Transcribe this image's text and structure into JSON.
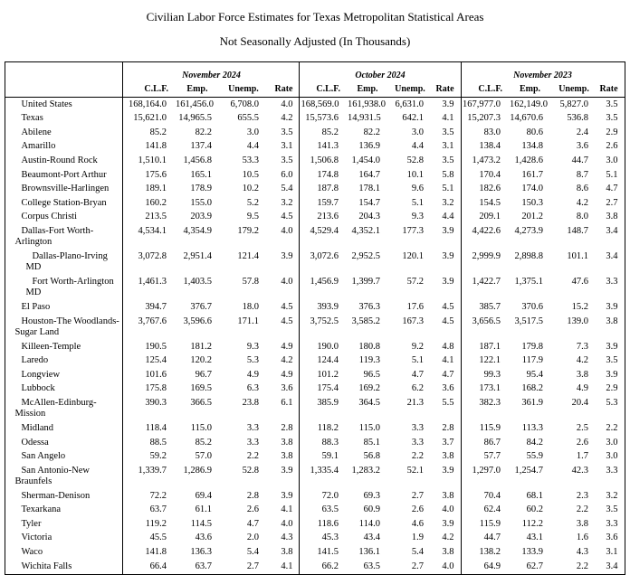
{
  "title": "Civilian Labor Force Estimates for Texas Metropolitan Statistical Areas",
  "subtitle": "Not Seasonally Adjusted (In Thousands)",
  "table": {
    "corner_label": "",
    "groups": [
      {
        "period": "November 2024",
        "columns": [
          "C.L.F.",
          "Emp.",
          "Unemp.",
          "Rate"
        ]
      },
      {
        "period": "October 2024",
        "columns": [
          "C.L.F.",
          "Emp.",
          "Unemp.",
          "Rate"
        ]
      },
      {
        "period": "November 2023",
        "columns": [
          "C.L.F.",
          "Emp.",
          "Unemp.",
          "Rate"
        ]
      }
    ],
    "rows": [
      {
        "area": "United States",
        "indent": 0,
        "values": [
          [
            "168,164.0",
            "161,456.0",
            "6,708.0",
            "4.0"
          ],
          [
            "168,569.0",
            "161,938.0",
            "6,631.0",
            "3.9"
          ],
          [
            "167,977.0",
            "162,149.0",
            "5,827.0",
            "3.5"
          ]
        ]
      },
      {
        "area": "Texas",
        "indent": 0,
        "values": [
          [
            "15,621.0",
            "14,965.5",
            "655.5",
            "4.2"
          ],
          [
            "15,573.6",
            "14,931.5",
            "642.1",
            "4.1"
          ],
          [
            "15,207.3",
            "14,670.6",
            "536.8",
            "3.5"
          ]
        ]
      },
      {
        "area": "Abilene",
        "indent": 0,
        "values": [
          [
            "85.2",
            "82.2",
            "3.0",
            "3.5"
          ],
          [
            "85.2",
            "82.2",
            "3.0",
            "3.5"
          ],
          [
            "83.0",
            "80.6",
            "2.4",
            "2.9"
          ]
        ]
      },
      {
        "area": "Amarillo",
        "indent": 0,
        "values": [
          [
            "141.8",
            "137.4",
            "4.4",
            "3.1"
          ],
          [
            "141.3",
            "136.9",
            "4.4",
            "3.1"
          ],
          [
            "138.4",
            "134.8",
            "3.6",
            "2.6"
          ]
        ]
      },
      {
        "area": "Austin-Round Rock",
        "indent": 0,
        "values": [
          [
            "1,510.1",
            "1,456.8",
            "53.3",
            "3.5"
          ],
          [
            "1,506.8",
            "1,454.0",
            "52.8",
            "3.5"
          ],
          [
            "1,473.2",
            "1,428.6",
            "44.7",
            "3.0"
          ]
        ]
      },
      {
        "area": "Beaumont-Port Arthur",
        "indent": 0,
        "values": [
          [
            "175.6",
            "165.1",
            "10.5",
            "6.0"
          ],
          [
            "174.8",
            "164.7",
            "10.1",
            "5.8"
          ],
          [
            "170.4",
            "161.7",
            "8.7",
            "5.1"
          ]
        ]
      },
      {
        "area": "Brownsville-Harlingen",
        "indent": 0,
        "values": [
          [
            "189.1",
            "178.9",
            "10.2",
            "5.4"
          ],
          [
            "187.8",
            "178.1",
            "9.6",
            "5.1"
          ],
          [
            "182.6",
            "174.0",
            "8.6",
            "4.7"
          ]
        ]
      },
      {
        "area": "College Station-Bryan",
        "indent": 0,
        "values": [
          [
            "160.2",
            "155.0",
            "5.2",
            "3.2"
          ],
          [
            "159.7",
            "154.7",
            "5.1",
            "3.2"
          ],
          [
            "154.5",
            "150.3",
            "4.2",
            "2.7"
          ]
        ]
      },
      {
        "area": "Corpus Christi",
        "indent": 0,
        "values": [
          [
            "213.5",
            "203.9",
            "9.5",
            "4.5"
          ],
          [
            "213.6",
            "204.3",
            "9.3",
            "4.4"
          ],
          [
            "209.1",
            "201.2",
            "8.0",
            "3.8"
          ]
        ]
      },
      {
        "area": "Dallas-Fort Worth-Arlington",
        "indent": 0,
        "values": [
          [
            "4,534.1",
            "4,354.9",
            "179.2",
            "4.0"
          ],
          [
            "4,529.4",
            "4,352.1",
            "177.3",
            "3.9"
          ],
          [
            "4,422.6",
            "4,273.9",
            "148.7",
            "3.4"
          ]
        ]
      },
      {
        "area": "Dallas-Plano-Irving MD",
        "indent": 1,
        "values": [
          [
            "3,072.8",
            "2,951.4",
            "121.4",
            "3.9"
          ],
          [
            "3,072.6",
            "2,952.5",
            "120.1",
            "3.9"
          ],
          [
            "2,999.9",
            "2,898.8",
            "101.1",
            "3.4"
          ]
        ]
      },
      {
        "area": "Fort Worth-Arlington MD",
        "indent": 1,
        "values": [
          [
            "1,461.3",
            "1,403.5",
            "57.8",
            "4.0"
          ],
          [
            "1,456.9",
            "1,399.7",
            "57.2",
            "3.9"
          ],
          [
            "1,422.7",
            "1,375.1",
            "47.6",
            "3.3"
          ]
        ]
      },
      {
        "area": "El Paso",
        "indent": 0,
        "values": [
          [
            "394.7",
            "376.7",
            "18.0",
            "4.5"
          ],
          [
            "393.9",
            "376.3",
            "17.6",
            "4.5"
          ],
          [
            "385.7",
            "370.6",
            "15.2",
            "3.9"
          ]
        ]
      },
      {
        "area": "Houston-The Woodlands-\nSugar Land",
        "indent": 0,
        "values": [
          [
            "3,767.6",
            "3,596.6",
            "171.1",
            "4.5"
          ],
          [
            "3,752.5",
            "3,585.2",
            "167.3",
            "4.5"
          ],
          [
            "3,656.5",
            "3,517.5",
            "139.0",
            "3.8"
          ]
        ]
      },
      {
        "area": "Killeen-Temple",
        "indent": 0,
        "values": [
          [
            "190.5",
            "181.2",
            "9.3",
            "4.9"
          ],
          [
            "190.0",
            "180.8",
            "9.2",
            "4.8"
          ],
          [
            "187.1",
            "179.8",
            "7.3",
            "3.9"
          ]
        ]
      },
      {
        "area": "Laredo",
        "indent": 0,
        "values": [
          [
            "125.4",
            "120.2",
            "5.3",
            "4.2"
          ],
          [
            "124.4",
            "119.3",
            "5.1",
            "4.1"
          ],
          [
            "122.1",
            "117.9",
            "4.2",
            "3.5"
          ]
        ]
      },
      {
        "area": "Longview",
        "indent": 0,
        "values": [
          [
            "101.6",
            "96.7",
            "4.9",
            "4.9"
          ],
          [
            "101.2",
            "96.5",
            "4.7",
            "4.7"
          ],
          [
            "99.3",
            "95.4",
            "3.8",
            "3.9"
          ]
        ]
      },
      {
        "area": "Lubbock",
        "indent": 0,
        "values": [
          [
            "175.8",
            "169.5",
            "6.3",
            "3.6"
          ],
          [
            "175.4",
            "169.2",
            "6.2",
            "3.6"
          ],
          [
            "173.1",
            "168.2",
            "4.9",
            "2.9"
          ]
        ]
      },
      {
        "area": "McAllen-Edinburg-Mission",
        "indent": 0,
        "values": [
          [
            "390.3",
            "366.5",
            "23.8",
            "6.1"
          ],
          [
            "385.9",
            "364.5",
            "21.3",
            "5.5"
          ],
          [
            "382.3",
            "361.9",
            "20.4",
            "5.3"
          ]
        ]
      },
      {
        "area": "Midland",
        "indent": 0,
        "values": [
          [
            "118.4",
            "115.0",
            "3.3",
            "2.8"
          ],
          [
            "118.2",
            "115.0",
            "3.3",
            "2.8"
          ],
          [
            "115.9",
            "113.3",
            "2.5",
            "2.2"
          ]
        ]
      },
      {
        "area": "Odessa",
        "indent": 0,
        "values": [
          [
            "88.5",
            "85.2",
            "3.3",
            "3.8"
          ],
          [
            "88.3",
            "85.1",
            "3.3",
            "3.7"
          ],
          [
            "86.7",
            "84.2",
            "2.6",
            "3.0"
          ]
        ]
      },
      {
        "area": "San Angelo",
        "indent": 0,
        "values": [
          [
            "59.2",
            "57.0",
            "2.2",
            "3.8"
          ],
          [
            "59.1",
            "56.8",
            "2.2",
            "3.8"
          ],
          [
            "57.7",
            "55.9",
            "1.7",
            "3.0"
          ]
        ]
      },
      {
        "area": "San Antonio-New Braunfels",
        "indent": 0,
        "values": [
          [
            "1,339.7",
            "1,286.9",
            "52.8",
            "3.9"
          ],
          [
            "1,335.4",
            "1,283.2",
            "52.1",
            "3.9"
          ],
          [
            "1,297.0",
            "1,254.7",
            "42.3",
            "3.3"
          ]
        ]
      },
      {
        "area": "Sherman-Denison",
        "indent": 0,
        "values": [
          [
            "72.2",
            "69.4",
            "2.8",
            "3.9"
          ],
          [
            "72.0",
            "69.3",
            "2.7",
            "3.8"
          ],
          [
            "70.4",
            "68.1",
            "2.3",
            "3.2"
          ]
        ]
      },
      {
        "area": "Texarkana",
        "indent": 0,
        "values": [
          [
            "63.7",
            "61.1",
            "2.6",
            "4.1"
          ],
          [
            "63.5",
            "60.9",
            "2.6",
            "4.0"
          ],
          [
            "62.4",
            "60.2",
            "2.2",
            "3.5"
          ]
        ]
      },
      {
        "area": "Tyler",
        "indent": 0,
        "values": [
          [
            "119.2",
            "114.5",
            "4.7",
            "4.0"
          ],
          [
            "118.6",
            "114.0",
            "4.6",
            "3.9"
          ],
          [
            "115.9",
            "112.2",
            "3.8",
            "3.3"
          ]
        ]
      },
      {
        "area": "Victoria",
        "indent": 0,
        "values": [
          [
            "45.5",
            "43.6",
            "2.0",
            "4.3"
          ],
          [
            "45.3",
            "43.4",
            "1.9",
            "4.2"
          ],
          [
            "44.7",
            "43.1",
            "1.6",
            "3.6"
          ]
        ]
      },
      {
        "area": "Waco",
        "indent": 0,
        "values": [
          [
            "141.8",
            "136.3",
            "5.4",
            "3.8"
          ],
          [
            "141.5",
            "136.1",
            "5.4",
            "3.8"
          ],
          [
            "138.2",
            "133.9",
            "4.3",
            "3.1"
          ]
        ]
      },
      {
        "area": "Wichita Falls",
        "indent": 0,
        "values": [
          [
            "66.4",
            "63.7",
            "2.7",
            "4.1"
          ],
          [
            "66.2",
            "63.5",
            "2.7",
            "4.0"
          ],
          [
            "64.9",
            "62.7",
            "2.2",
            "3.4"
          ]
        ]
      }
    ]
  }
}
